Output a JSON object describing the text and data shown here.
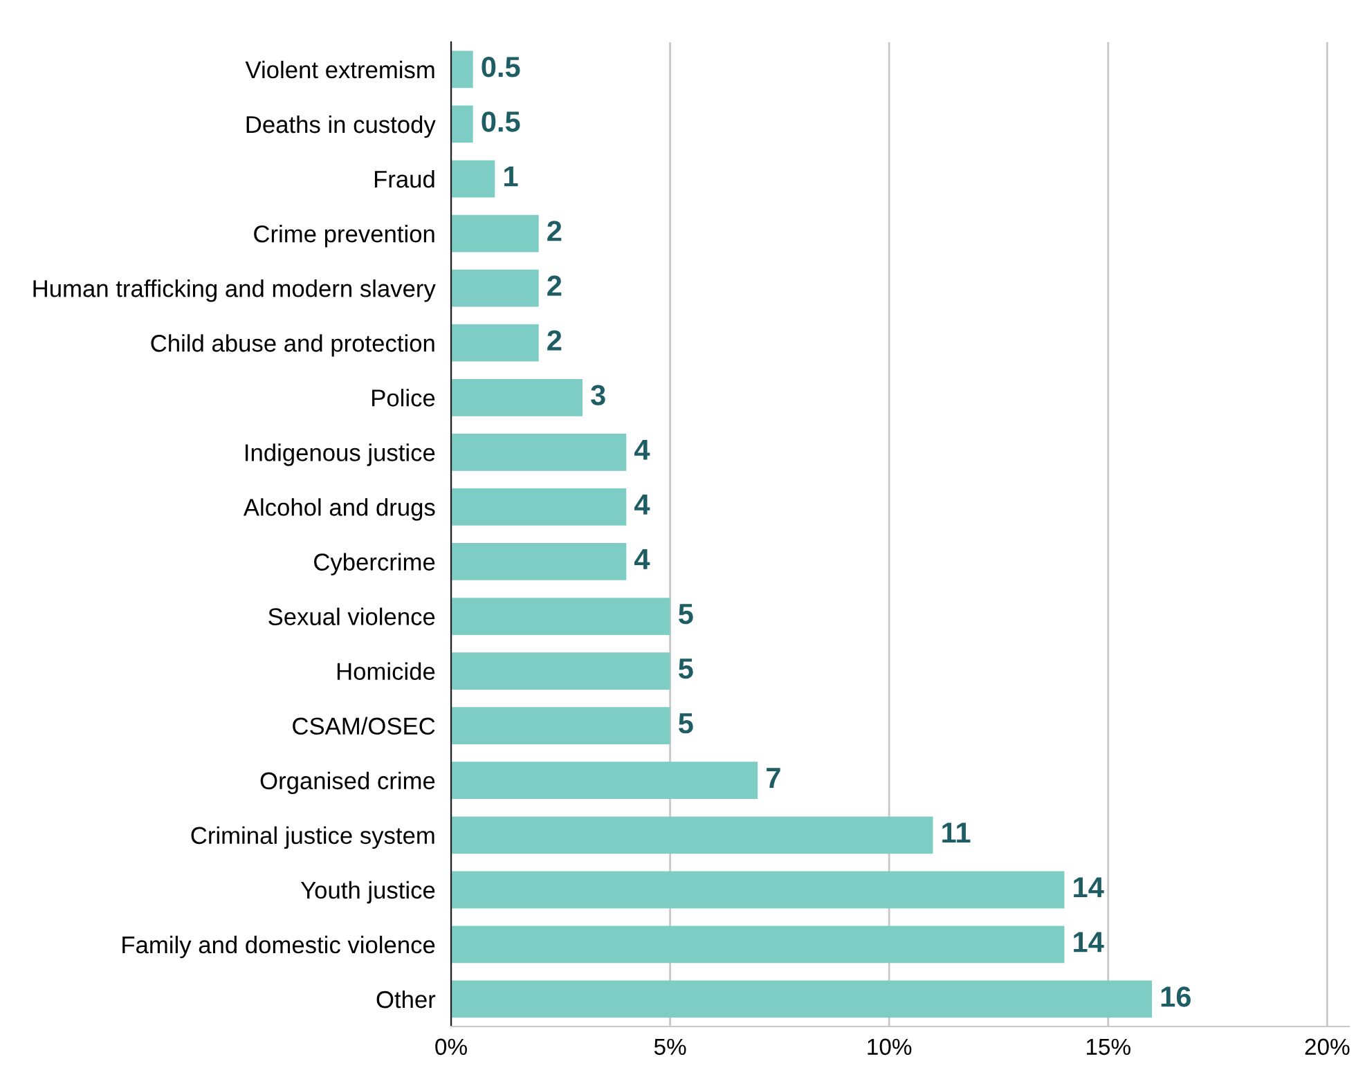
{
  "chart_data": {
    "type": "bar",
    "orientation": "horizontal",
    "categories": [
      "Violent extremism",
      "Deaths in custody",
      "Fraud",
      "Crime prevention",
      "Human trafficking and modern slavery",
      "Child abuse and protection",
      "Police",
      "Indigenous justice",
      "Alcohol and drugs",
      "Cybercrime",
      "Sexual violence",
      "Homicide",
      "CSAM/OSEC",
      "Organised crime",
      "Criminal justice system",
      "Youth justice",
      "Family and domestic violence",
      "Other"
    ],
    "values": [
      0.5,
      0.5,
      1,
      2,
      2,
      2,
      3,
      4,
      4,
      4,
      5,
      5,
      5,
      7,
      11,
      14,
      14,
      16
    ],
    "color": "#7ecdc5",
    "xlim": [
      0,
      20.5
    ],
    "xticks": [
      {
        "value": 0,
        "label": "0%"
      },
      {
        "value": 5,
        "label": "5%"
      },
      {
        "value": 10,
        "label": "10%"
      },
      {
        "value": 15,
        "label": "15%"
      },
      {
        "value": 20,
        "label": "20%"
      }
    ],
    "grid": "x",
    "data_labels": true,
    "legend": false
  }
}
